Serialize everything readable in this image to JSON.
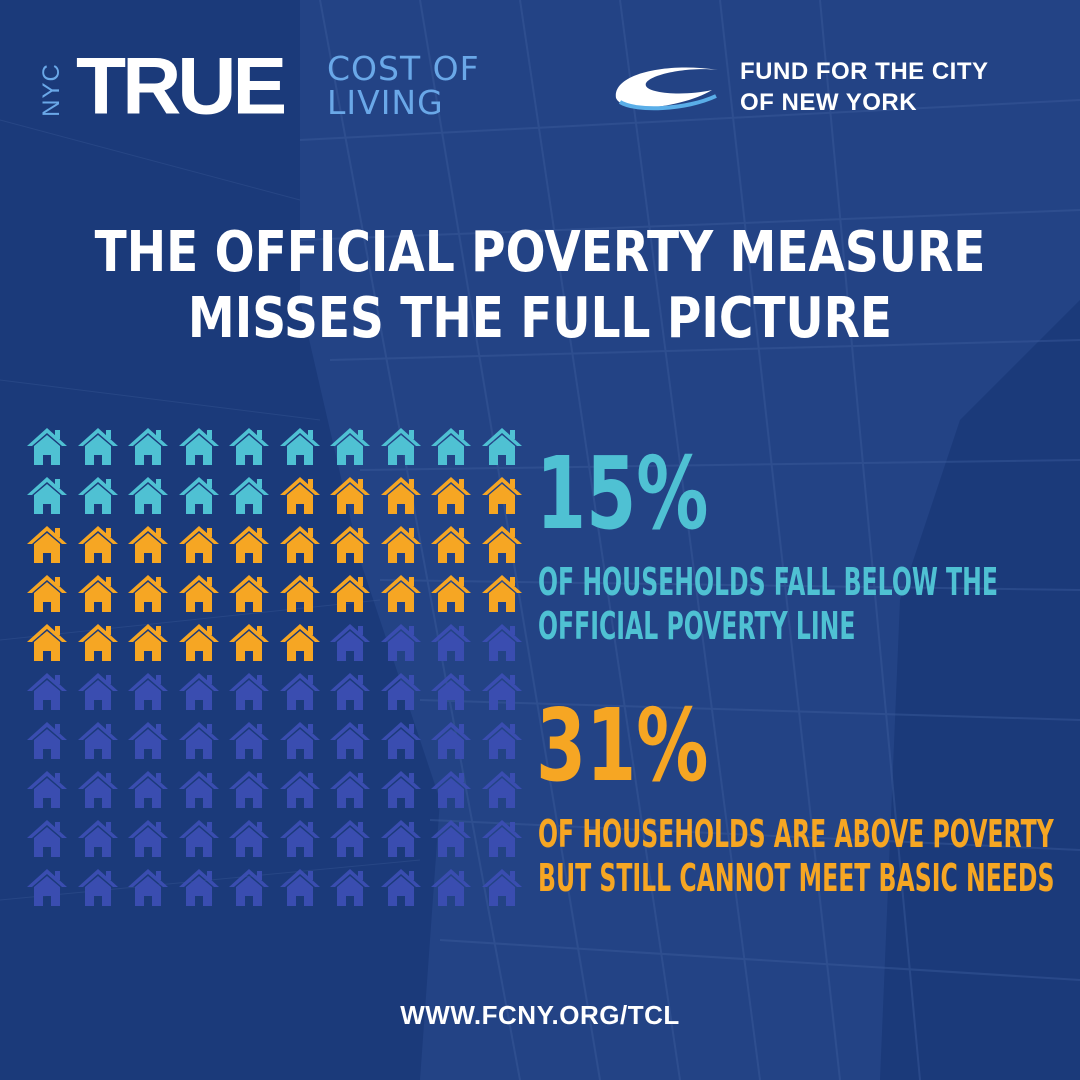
{
  "brand": {
    "nyc": "NYC",
    "true": "TRUE",
    "cost_line1": "COST OF",
    "cost_line2": "LIVING"
  },
  "partner": {
    "line1": "FUND FOR THE CITY",
    "line2": "OF NEW YORK"
  },
  "headline": {
    "line1": "THE OFFICIAL POVERTY MEASURE",
    "line2": "MISSES THE FULL PICTURE"
  },
  "icon_grid": {
    "total": 100,
    "columns": 10,
    "below_poverty_count": 15,
    "above_poverty_unmet_count": 31,
    "icon": "house-icon"
  },
  "stats": [
    {
      "value": "15%",
      "line1": "OF HOUSEHOLDS FALL BELOW THE",
      "line2": "OFFICIAL POVERTY LINE",
      "color": "#4fc1d3"
    },
    {
      "value": "31%",
      "line1": "OF HOUSEHOLDS ARE ABOVE POVERTY",
      "line2": "BUT STILL CANNOT MEET BASIC NEEDS",
      "color": "#f6a623"
    }
  ],
  "colors": {
    "background": "#1b3a7a",
    "below_poverty": "#4fc1d3",
    "above_poverty_unmet": "#f6a623",
    "others": "#3a4db0"
  },
  "footer": {
    "url": "WWW.FCNY.ORG/TCL"
  }
}
